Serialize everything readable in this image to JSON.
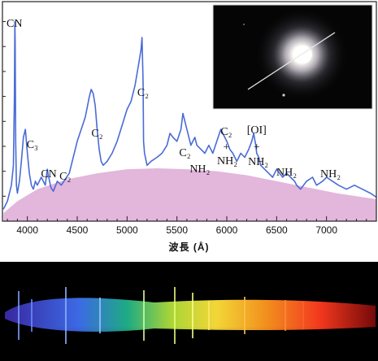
{
  "chart_data": {
    "type": "line",
    "xlabel": "波長 (Å)",
    "xlim": [
      3750,
      7500
    ],
    "x_ticks": [
      "4000",
      "4500",
      "5000",
      "5500",
      "6000",
      "6500",
      "7000"
    ],
    "x_tick_values": [
      4000,
      4500,
      5000,
      5500,
      6000,
      6500,
      7000
    ],
    "series": [
      {
        "color": "#4a6bd6",
        "x": [
          3760,
          3800,
          3840,
          3860,
          3870,
          3875,
          3878,
          3883,
          3890,
          3900,
          3920,
          3940,
          3960,
          3980,
          4000,
          4020,
          4040,
          4060,
          4080,
          4100,
          4140,
          4180,
          4200,
          4215,
          4235,
          4260,
          4300,
          4340,
          4380,
          4420,
          4460,
          4500,
          4540,
          4580,
          4600,
          4620,
          4640,
          4660,
          4680,
          4700,
          4720,
          4740,
          4760,
          4800,
          4850,
          4900,
          4950,
          5000,
          5040,
          5080,
          5100,
          5120,
          5140,
          5150,
          5160,
          5165,
          5175,
          5200,
          5240,
          5300,
          5350,
          5400,
          5430,
          5460,
          5500,
          5540,
          5560,
          5600,
          5640,
          5680,
          5700,
          5740,
          5780,
          5820,
          5860,
          5900,
          5940,
          5960,
          5980,
          6000,
          6030,
          6060,
          6100,
          6140,
          6180,
          6220,
          6250,
          6270,
          6290,
          6300,
          6320,
          6340,
          6380,
          6420,
          6460,
          6500,
          6560,
          6600,
          6640,
          6680,
          6700,
          6740,
          6800,
          6860,
          6900,
          6960,
          7000,
          7060,
          7120,
          7200,
          7280,
          7360,
          7440,
          7500
        ],
        "y": [
          6,
          10,
          18,
          28,
          62,
          100,
          88,
          40,
          18,
          14,
          20,
          30,
          42,
          46,
          34,
          24,
          18,
          16,
          20,
          18,
          22,
          18,
          26,
          22,
          17,
          15,
          20,
          18,
          21,
          24,
          32,
          40,
          46,
          52,
          57,
          62,
          66,
          64,
          58,
          46,
          36,
          30,
          28,
          30,
          34,
          40,
          48,
          56,
          60,
          68,
          74,
          80,
          86,
          92,
          70,
          40,
          34,
          28,
          30,
          32,
          34,
          38,
          44,
          42,
          40,
          46,
          54,
          46,
          38,
          42,
          38,
          36,
          34,
          38,
          34,
          40,
          46,
          44,
          42,
          40,
          36,
          34,
          30,
          34,
          32,
          36,
          40,
          44,
          38,
          34,
          32,
          28,
          26,
          24,
          22,
          26,
          22,
          24,
          22,
          20,
          18,
          16,
          20,
          22,
          18,
          20,
          22,
          20,
          18,
          16,
          18,
          16,
          14,
          12
        ]
      }
    ],
    "continuum": {
      "x": [
        3760,
        3900,
        4100,
        4400,
        4700,
        5000,
        5300,
        5600,
        5900,
        6200,
        6500,
        6800,
        7100,
        7500
      ],
      "y": [
        4,
        10,
        16,
        21,
        24,
        26,
        26.5,
        26,
        25,
        23,
        20,
        17,
        14,
        11
      ],
      "color": "#e3b6dc"
    },
    "annotations": [
      {
        "text": "CN",
        "x": 3870
      },
      {
        "text": "C₃",
        "x": 4050
      },
      {
        "text": "CN",
        "x": 4215
      },
      {
        "text": "C₂",
        "x": 4380
      },
      {
        "text": "C₂",
        "x": 4700
      },
      {
        "text": "C₂",
        "x": 5160
      },
      {
        "text": "C₂",
        "x": 5580
      },
      {
        "text": "NH₂",
        "x": 5730
      },
      {
        "text": "C₂",
        "x": 5995
      },
      {
        "text": "+",
        "x": 5995
      },
      {
        "text": "NH₂",
        "x": 6005
      },
      {
        "text": "[OI]",
        "x": 6300
      },
      {
        "text": "+",
        "x": 6300
      },
      {
        "text": "NH₂",
        "x": 6315
      },
      {
        "text": "NH₂",
        "x": 6600
      },
      {
        "text": "NH₂",
        "x": 7040
      }
    ],
    "inset": "comet-photo",
    "spectrum_strip": "color-spectrum"
  }
}
